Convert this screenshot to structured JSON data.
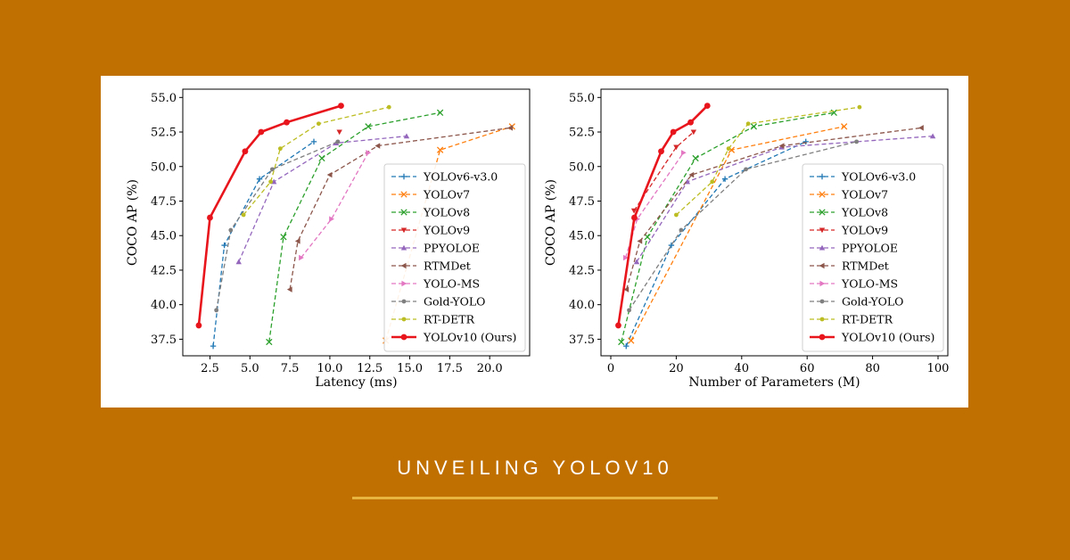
{
  "banner": {
    "title": "UNVEILING YOLOV10"
  },
  "chart_data": [
    {
      "type": "line",
      "name": "latency",
      "xlabel": "Latency (ms)",
      "ylabel": "COCO AP (%)",
      "xlim": [
        0.8,
        22.5
      ],
      "ylim": [
        36.3,
        55.6
      ],
      "xticks": [
        "2.5",
        "5.0",
        "7.5",
        "10.0",
        "12.5",
        "15.0",
        "17.5",
        "20.0"
      ],
      "yticks": [
        "37.5",
        "40.0",
        "42.5",
        "45.0",
        "47.5",
        "50.0",
        "52.5",
        "55.0"
      ],
      "legend_position": "lower-right",
      "series": [
        {
          "name": "YOLOv6-v3.0",
          "color": "#1f77b4",
          "marker": "plus",
          "dashed": true,
          "x": [
            2.7,
            3.4,
            5.6,
            9.0
          ],
          "y": [
            37.0,
            44.3,
            49.1,
            51.8
          ]
        },
        {
          "name": "YOLOv7",
          "color": "#ff7f0e",
          "marker": "x",
          "dashed": true,
          "x": [
            13.5,
            16.9,
            21.4
          ],
          "y": [
            37.4,
            51.2,
            52.9
          ]
        },
        {
          "name": "YOLOv8",
          "color": "#2ca02c",
          "marker": "x",
          "dashed": true,
          "x": [
            6.2,
            7.1,
            9.5,
            12.4,
            16.9
          ],
          "y": [
            37.3,
            44.9,
            50.6,
            52.9,
            53.9
          ]
        },
        {
          "name": "YOLOv9",
          "color": "#d62728",
          "marker": "tri-down",
          "dashed": true,
          "x": [
            10.6
          ],
          "y": [
            52.5
          ]
        },
        {
          "name": "PPYOLOE",
          "color": "#9467bd",
          "marker": "tri-up",
          "dashed": true,
          "x": [
            4.3,
            6.5,
            10.4,
            14.8
          ],
          "y": [
            43.1,
            48.9,
            51.7,
            52.2
          ]
        },
        {
          "name": "RTMDet",
          "color": "#8c564b",
          "marker": "tri-left",
          "dashed": true,
          "x": [
            7.5,
            8.0,
            10.0,
            13.0,
            21.3
          ],
          "y": [
            41.1,
            44.6,
            49.4,
            51.5,
            52.8
          ]
        },
        {
          "name": "YOLO-MS",
          "color": "#e377c2",
          "marker": "tri-right",
          "dashed": true,
          "x": [
            8.2,
            10.1,
            12.4
          ],
          "y": [
            43.4,
            46.2,
            51.0
          ]
        },
        {
          "name": "Gold-YOLO",
          "color": "#7f7f7f",
          "marker": "dot",
          "dashed": true,
          "x": [
            2.9,
            3.8,
            6.4,
            10.5
          ],
          "y": [
            39.6,
            45.4,
            49.8,
            51.8
          ]
        },
        {
          "name": "RT-DETR",
          "color": "#bcbd22",
          "marker": "dot",
          "dashed": true,
          "x": [
            4.6,
            6.3,
            6.9,
            9.3,
            13.7
          ],
          "y": [
            46.5,
            48.9,
            51.3,
            53.1,
            54.3
          ]
        },
        {
          "name": "YOLOv10 (Ours)",
          "color": "#e8151d",
          "marker": "bigdot",
          "dashed": false,
          "x": [
            1.8,
            2.5,
            4.7,
            5.7,
            7.3,
            10.7
          ],
          "y": [
            38.5,
            46.3,
            51.1,
            52.5,
            53.2,
            54.4
          ]
        }
      ]
    },
    {
      "type": "line",
      "name": "params",
      "xlabel": "Number of Parameters (M)",
      "ylabel": "COCO AP (%)",
      "xlim": [
        -3,
        103
      ],
      "ylim": [
        36.3,
        55.6
      ],
      "xticks": [
        "0",
        "20",
        "40",
        "60",
        "80",
        "100"
      ],
      "yticks": [
        "37.5",
        "40.0",
        "42.5",
        "45.0",
        "47.5",
        "50.0",
        "52.5",
        "55.0"
      ],
      "legend_position": "lower-right",
      "series": [
        {
          "name": "YOLOv6-v3.0",
          "color": "#1f77b4",
          "marker": "plus",
          "dashed": true,
          "x": [
            4.7,
            18.5,
            34.9,
            59.6
          ],
          "y": [
            37.0,
            44.3,
            49.1,
            51.8
          ]
        },
        {
          "name": "YOLOv7",
          "color": "#ff7f0e",
          "marker": "x",
          "dashed": true,
          "x": [
            6.2,
            36.9,
            71.3
          ],
          "y": [
            37.4,
            51.2,
            52.9
          ]
        },
        {
          "name": "YOLOv8",
          "color": "#2ca02c",
          "marker": "x",
          "dashed": true,
          "x": [
            3.2,
            11.2,
            25.9,
            43.7,
            68.2
          ],
          "y": [
            37.3,
            44.9,
            50.6,
            52.9,
            53.9
          ]
        },
        {
          "name": "YOLOv9",
          "color": "#d62728",
          "marker": "tri-down",
          "dashed": true,
          "x": [
            7.1,
            20.0,
            25.3
          ],
          "y": [
            46.8,
            51.4,
            52.5
          ]
        },
        {
          "name": "PPYOLOE",
          "color": "#9467bd",
          "marker": "tri-up",
          "dashed": true,
          "x": [
            7.9,
            23.4,
            52.2,
            98.4
          ],
          "y": [
            43.1,
            48.9,
            51.4,
            52.2
          ]
        },
        {
          "name": "RTMDet",
          "color": "#8c564b",
          "marker": "tri-left",
          "dashed": true,
          "x": [
            4.8,
            8.9,
            24.7,
            52.3,
            94.9
          ],
          "y": [
            41.1,
            44.6,
            49.4,
            51.5,
            52.8
          ]
        },
        {
          "name": "YOLO-MS",
          "color": "#e377c2",
          "marker": "tri-right",
          "dashed": true,
          "x": [
            4.5,
            8.1,
            22.2
          ],
          "y": [
            43.4,
            46.2,
            51.0
          ]
        },
        {
          "name": "Gold-YOLO",
          "color": "#7f7f7f",
          "marker": "dot",
          "dashed": true,
          "x": [
            5.6,
            21.5,
            41.3,
            75.1
          ],
          "y": [
            39.6,
            45.4,
            49.8,
            51.8
          ]
        },
        {
          "name": "RT-DETR",
          "color": "#bcbd22",
          "marker": "dot",
          "dashed": true,
          "x": [
            20.0,
            31.0,
            36.0,
            42.0,
            76.0
          ],
          "y": [
            46.5,
            48.9,
            51.3,
            53.1,
            54.3
          ]
        },
        {
          "name": "YOLOv10 (Ours)",
          "color": "#e8151d",
          "marker": "bigdot",
          "dashed": false,
          "x": [
            2.3,
            7.2,
            15.4,
            19.1,
            24.4,
            29.5
          ],
          "y": [
            38.5,
            46.3,
            51.1,
            52.5,
            53.2,
            54.4
          ]
        }
      ]
    }
  ]
}
